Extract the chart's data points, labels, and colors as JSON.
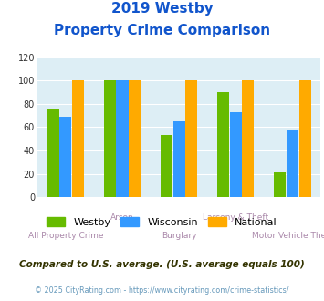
{
  "title_line1": "2019 Westby",
  "title_line2": "Property Crime Comparison",
  "westby": [
    76,
    100,
    53,
    90,
    21
  ],
  "wisconsin": [
    69,
    100,
    65,
    73,
    58
  ],
  "national": [
    100,
    100,
    100,
    100,
    100
  ],
  "bar_colors": {
    "westby": "#66bb00",
    "wisconsin": "#3399ff",
    "national": "#ffaa00"
  },
  "ylim": [
    0,
    120
  ],
  "yticks": [
    0,
    20,
    40,
    60,
    80,
    100,
    120
  ],
  "title_color": "#1155cc",
  "xlabel_color": "#aa88aa",
  "cat_line1": [
    "",
    "Arson",
    "",
    "Larceny & Theft",
    ""
  ],
  "cat_line2": [
    "All Property Crime",
    "",
    "Burglary",
    "",
    "Motor Vehicle Theft"
  ],
  "footnote1": "Compared to U.S. average. (U.S. average equals 100)",
  "footnote2": "© 2025 CityRating.com - https://www.cityrating.com/crime-statistics/",
  "footnote1_color": "#333300",
  "footnote2_color": "#6699bb",
  "plot_bg_color": "#ddeef5"
}
